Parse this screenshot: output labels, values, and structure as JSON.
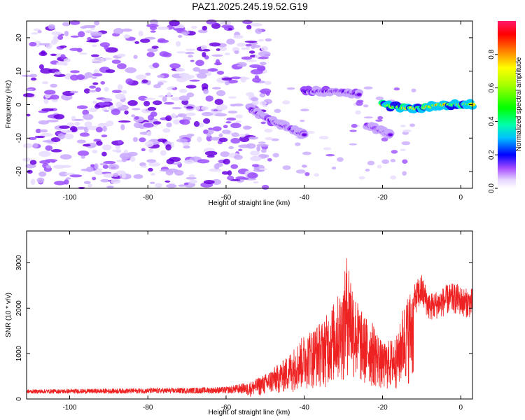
{
  "figure": {
    "title": "PAZ1.2025.245.19.52.G19"
  },
  "chart_data": [
    {
      "type": "heatmap",
      "title": "PAZ1.2025.245.19.52.G19",
      "xlabel": "Height of straight line (km)",
      "ylabel": "Frequency (Hz)",
      "xlim": [
        -111,
        3
      ],
      "ylim": [
        -25,
        25
      ],
      "x_ticks": [
        -100,
        -80,
        -60,
        -40,
        -20,
        0
      ],
      "y_ticks": [
        20,
        10,
        0,
        -10,
        -20
      ],
      "colorbar": {
        "label": "Normalized spectral amplitude",
        "range": [
          0,
          1
        ],
        "ticks": [
          0.0,
          0.2,
          0.4,
          0.6,
          0.8
        ],
        "colors": [
          "#ffffff",
          "#d7b8ff",
          "#8a2be2",
          "#0000ff",
          "#00ffff",
          "#00ff00",
          "#ffff00",
          "#ff8000",
          "#ff0000",
          "#ff1493"
        ]
      },
      "ridges": [
        {
          "x": [
            -54,
            -50,
            -46,
            -42,
            -40
          ],
          "y": [
            -1,
            -4,
            -6,
            -8,
            -9
          ],
          "amplitude": 0.25
        },
        {
          "x": [
            -40,
            -35,
            -30,
            -26
          ],
          "y": [
            4,
            4,
            4,
            3
          ],
          "amplitude": 0.25
        },
        {
          "x": [
            -24,
            -20,
            -18
          ],
          "y": [
            -6,
            -8,
            -9
          ],
          "amplitude": 0.2
        },
        {
          "x": [
            -20,
            -15,
            -10,
            -5,
            0,
            3
          ],
          "y": [
            0,
            -1,
            -1,
            0,
            0,
            0
          ],
          "amplitude": 0.95
        }
      ],
      "grid": false
    },
    {
      "type": "line",
      "xlabel": "Height of straight line (km)",
      "ylabel": "SNR (10 * v/v)",
      "xlim": [
        -111,
        3
      ],
      "ylim": [
        0,
        3700
      ],
      "x_ticks": [
        -100,
        -80,
        -60,
        -40,
        -20,
        0
      ],
      "y_ticks": [
        0,
        1000,
        2000,
        3000
      ],
      "line_color": "#ee2222",
      "envelope": {
        "x": [
          -111,
          -100,
          -90,
          -80,
          -70,
          -60,
          -55,
          -50,
          -45,
          -40,
          -35,
          -32,
          -30,
          -29,
          -27,
          -25,
          -22,
          -20,
          -18,
          -16,
          -15,
          -13,
          -11,
          -10,
          -8,
          -5,
          -3,
          -1,
          1,
          3
        ],
        "y": [
          150,
          160,
          170,
          180,
          190,
          210,
          300,
          500,
          800,
          1300,
          1600,
          2000,
          2300,
          3000,
          2100,
          1700,
          1500,
          1100,
          1200,
          1300,
          1800,
          2200,
          2500,
          2600,
          2200,
          2300,
          2400,
          2400,
          2300,
          2300
        ]
      },
      "grid": false
    }
  ]
}
